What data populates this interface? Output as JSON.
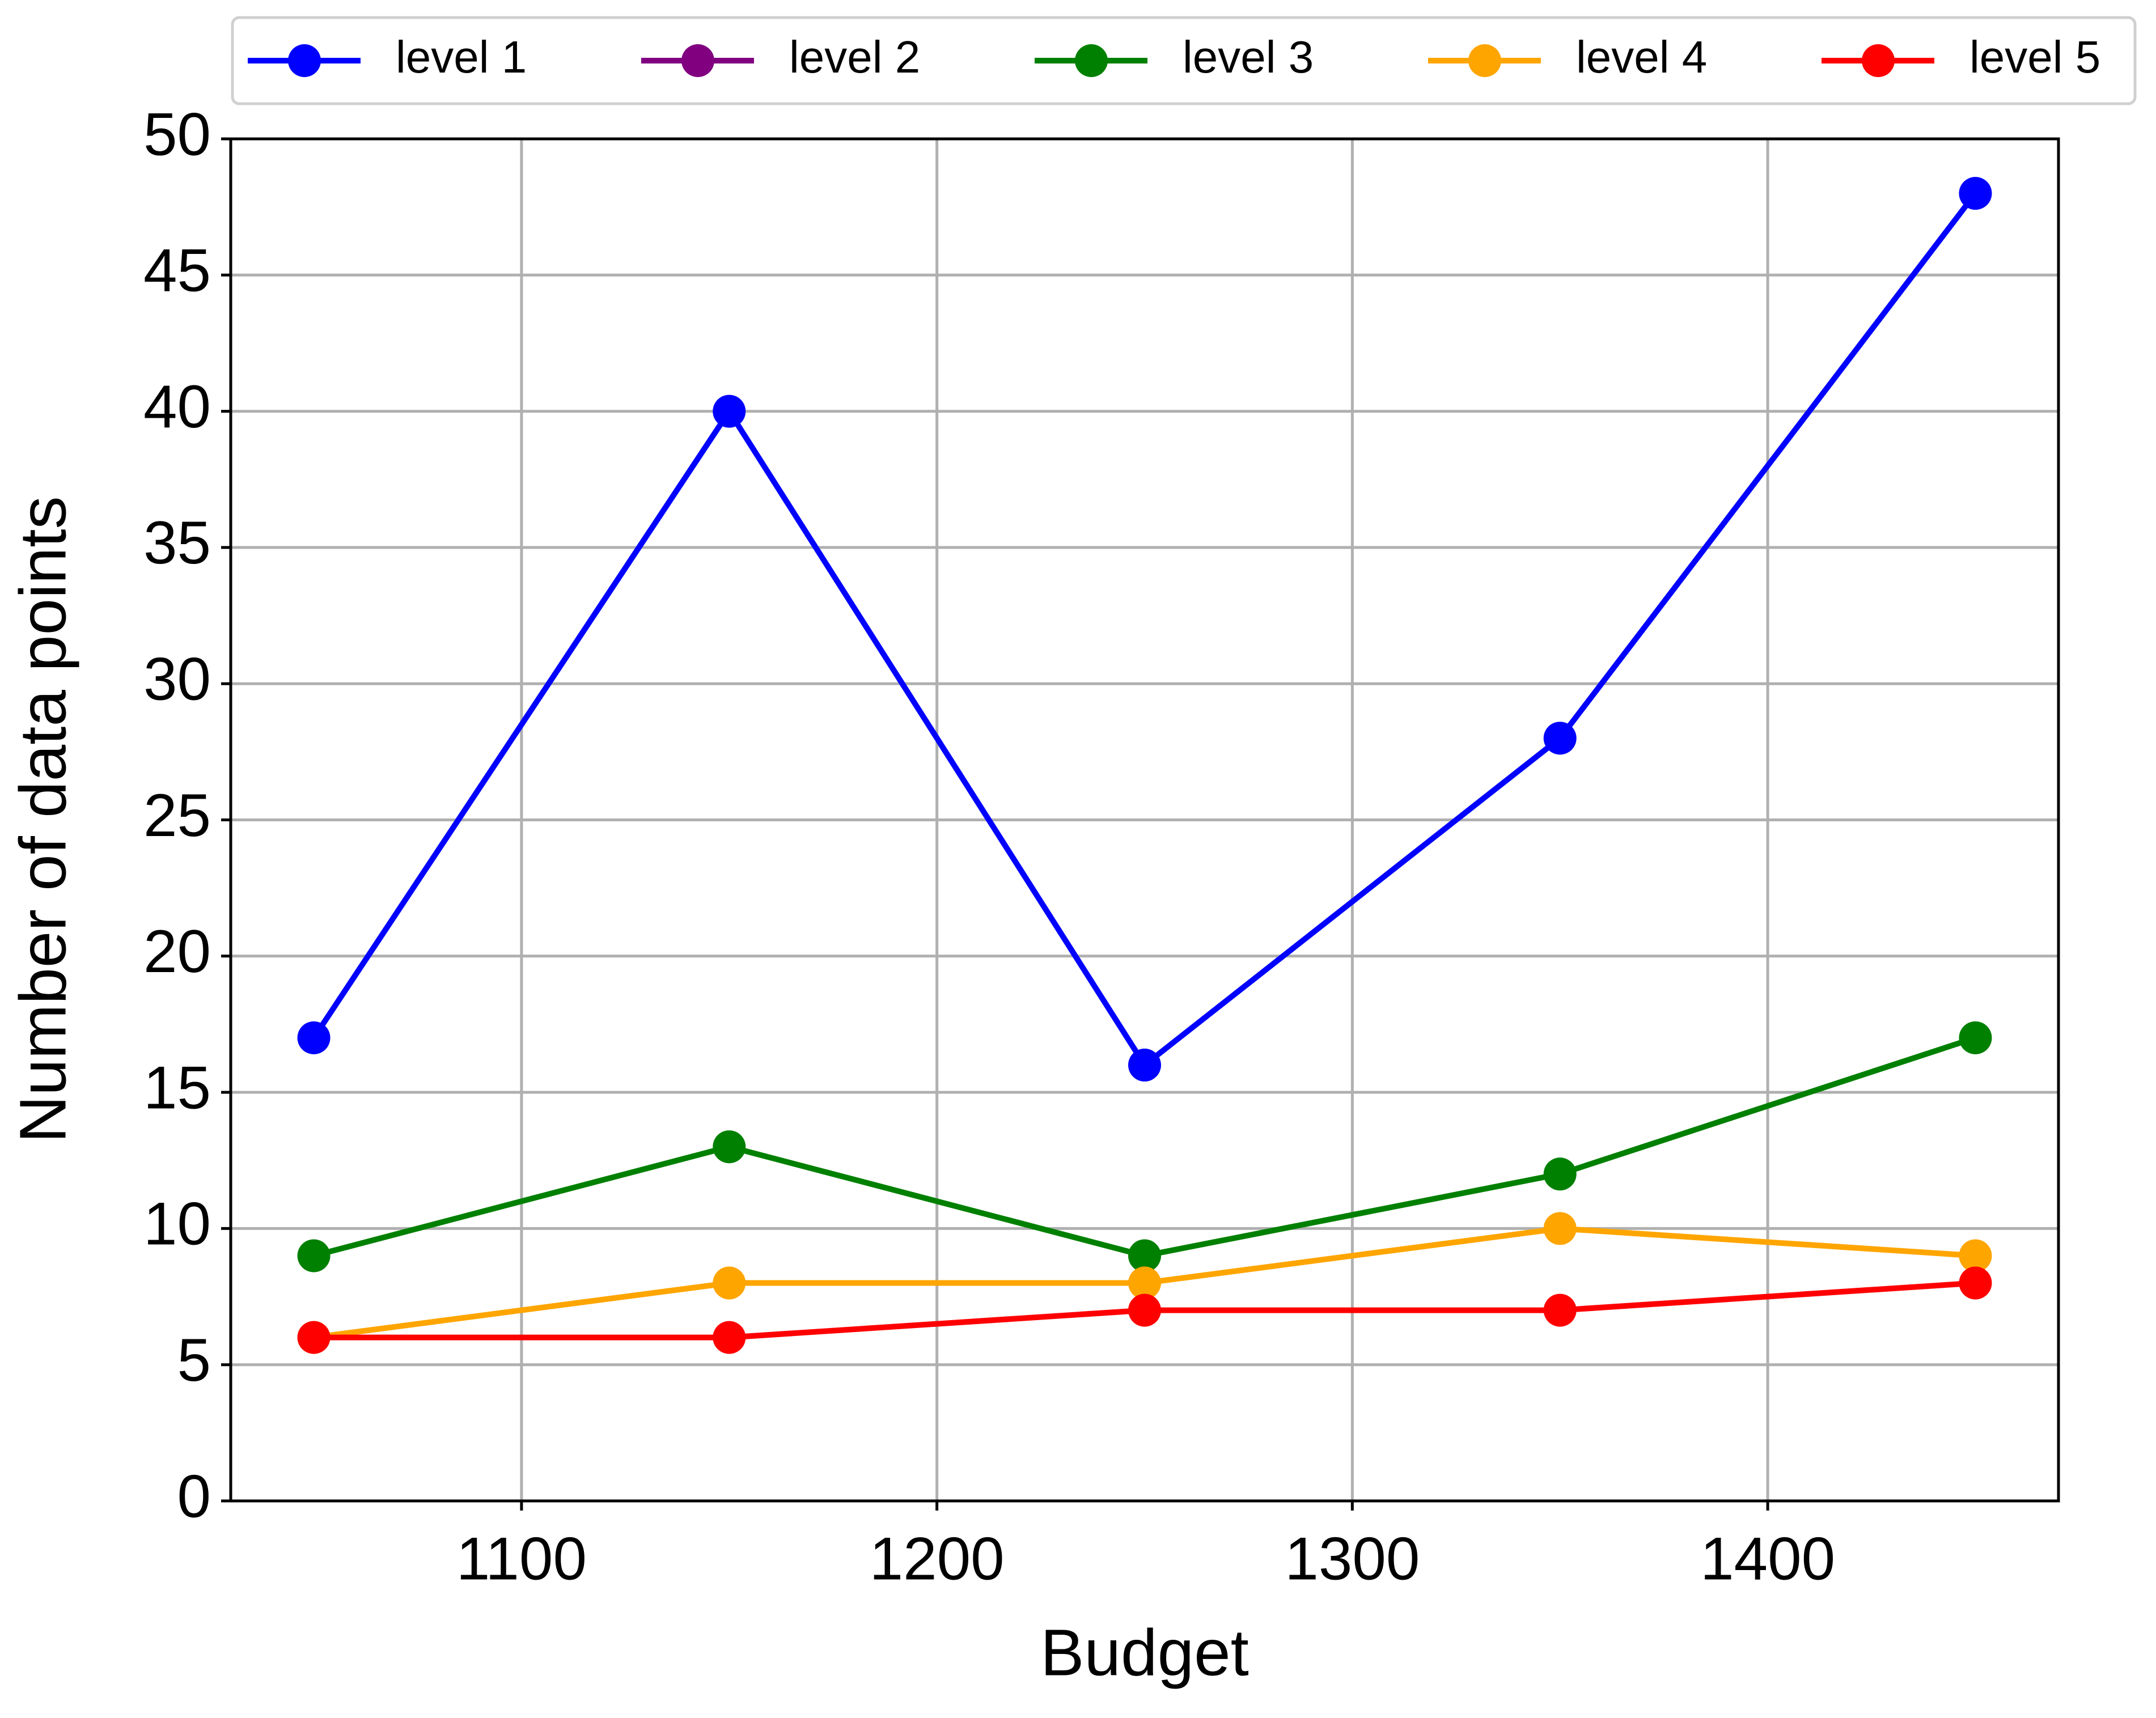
{
  "chart_data": {
    "type": "line",
    "x_label": "Budget",
    "y_label": "Number of data points",
    "x": [
      1050,
      1150,
      1250,
      1350,
      1450
    ],
    "series": [
      {
        "name": "level 1",
        "color": "#0000ff",
        "values": [
          17,
          40,
          16,
          28,
          48
        ]
      },
      {
        "name": "level 2",
        "color": "#800080",
        "values": [
          null,
          null,
          null,
          null,
          null
        ]
      },
      {
        "name": "level 3",
        "color": "#008000",
        "values": [
          9,
          13,
          9,
          12,
          17
        ]
      },
      {
        "name": "level 4",
        "color": "#ffa500",
        "values": [
          6,
          8,
          8,
          10,
          9
        ]
      },
      {
        "name": "level 5",
        "color": "#ff0000",
        "values": [
          6,
          6,
          7,
          7,
          8
        ]
      }
    ],
    "xlim": [
      1030,
      1470
    ],
    "xticks": [
      1100,
      1200,
      1300,
      1400
    ],
    "ylim": [
      0,
      50
    ],
    "yticks": [
      0,
      5,
      10,
      15,
      20,
      25,
      30,
      35,
      40,
      45,
      50
    ],
    "grid": true,
    "legend": "top"
  }
}
